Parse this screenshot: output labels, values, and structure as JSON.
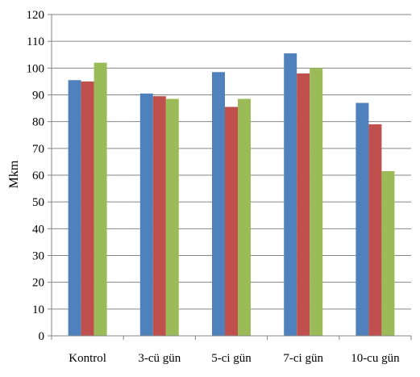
{
  "chart_data": {
    "type": "bar",
    "title": "",
    "xlabel": "",
    "ylabel": "Mkm",
    "ylim": [
      0,
      120
    ],
    "yticks": [
      0,
      10,
      20,
      30,
      40,
      50,
      60,
      70,
      80,
      90,
      100,
      110,
      120
    ],
    "grid": true,
    "legend": "none",
    "categories": [
      "Kontrol",
      "3-cü gün",
      "5-ci gün",
      "7-ci gün",
      "10-cu gün"
    ],
    "series": [
      {
        "color": "#4F81BD",
        "values": [
          95.5,
          90.5,
          98.5,
          105.5,
          87.0
        ]
      },
      {
        "color": "#C0504D",
        "values": [
          95.0,
          89.5,
          85.5,
          98.0,
          79.0
        ]
      },
      {
        "color": "#9BBB59",
        "values": [
          102.0,
          88.5,
          88.5,
          100.0,
          61.5
        ]
      }
    ]
  }
}
